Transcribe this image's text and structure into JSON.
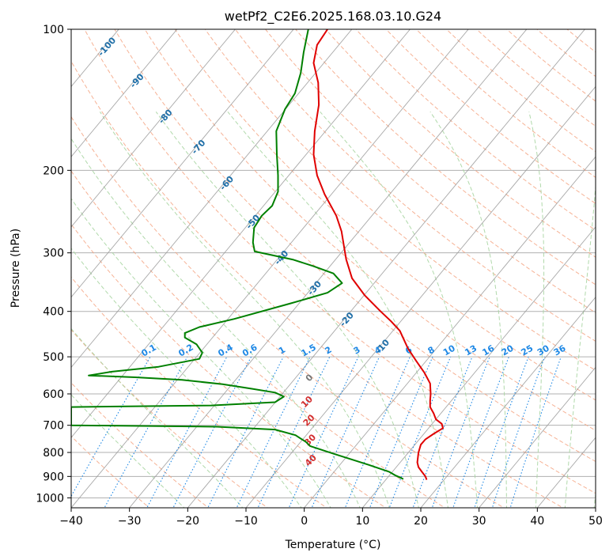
{
  "chart_data": {
    "type": "line",
    "title": "wetPf2_C2E6.2025.168.03.10.G24",
    "xlabel": "Temperature (°C)",
    "ylabel": "Pressure (hPa)",
    "xlim": [
      -40,
      50
    ],
    "ylim": [
      1050,
      100
    ],
    "y_scale": "log",
    "x_ticks": [
      -40,
      -30,
      -20,
      -10,
      0,
      10,
      20,
      30,
      40,
      50
    ],
    "y_ticks": [
      100,
      200,
      300,
      400,
      500,
      600,
      700,
      800,
      900,
      1000
    ],
    "grid": true,
    "series": [
      {
        "color": "#e00000",
        "points": [
          [
            21,
            915
          ],
          [
            20.8,
            900
          ],
          [
            20.2,
            880
          ],
          [
            19.6,
            860
          ],
          [
            19.4,
            840
          ],
          [
            19.6,
            800
          ],
          [
            20.0,
            770
          ],
          [
            20.8,
            750
          ],
          [
            22.2,
            730
          ],
          [
            23.8,
            710
          ],
          [
            23.6,
            695
          ],
          [
            22.6,
            680
          ],
          [
            22.2,
            660
          ],
          [
            21.6,
            640
          ],
          [
            21.6,
            620
          ],
          [
            21.7,
            600
          ],
          [
            21.6,
            570
          ],
          [
            20.6,
            540
          ],
          [
            19.2,
            510
          ],
          [
            17.8,
            480
          ],
          [
            16.4,
            440
          ],
          [
            14.9,
            420
          ],
          [
            13.1,
            400
          ],
          [
            10.4,
            370
          ],
          [
            8.2,
            340
          ],
          [
            7.2,
            310
          ],
          [
            6.8,
            290
          ],
          [
            6.4,
            270
          ],
          [
            5.5,
            250
          ],
          [
            3.5,
            225
          ],
          [
            2.2,
            205
          ],
          [
            1.6,
            185
          ],
          [
            1.8,
            165
          ],
          [
            2.5,
            145
          ],
          [
            2.4,
            130
          ],
          [
            1.6,
            118
          ],
          [
            2.2,
            108
          ],
          [
            4.0,
            100
          ]
        ]
      },
      {
        "color": "#008000",
        "points": [
          [
            17,
            912
          ],
          [
            16.5,
            905
          ],
          [
            15.6,
            895
          ],
          [
            14.6,
            880
          ],
          [
            11,
            850
          ],
          [
            5,
            805
          ],
          [
            1,
            775
          ],
          [
            0.3,
            760
          ],
          [
            -1.5,
            735
          ],
          [
            -5,
            715
          ],
          [
            -15,
            705
          ],
          [
            -40,
            700
          ],
          [
            -40,
            640
          ],
          [
            -16,
            635
          ],
          [
            -5,
            625
          ],
          [
            -3.5,
            608
          ],
          [
            -5,
            596
          ],
          [
            -9,
            585
          ],
          [
            -14,
            572
          ],
          [
            -21,
            560
          ],
          [
            -29,
            553
          ],
          [
            -37,
            548
          ],
          [
            -33,
            538
          ],
          [
            -25,
            525
          ],
          [
            -18,
            505
          ],
          [
            -17.5,
            490
          ],
          [
            -18.5,
            470
          ],
          [
            -20.5,
            455
          ],
          [
            -20.5,
            445
          ],
          [
            -18,
            432
          ],
          [
            -12,
            415
          ],
          [
            -2.5,
            385
          ],
          [
            4,
            365
          ],
          [
            6.5,
            348
          ],
          [
            5,
            332
          ],
          [
            1.5,
            320
          ],
          [
            -2,
            310
          ],
          [
            -8.5,
            298
          ],
          [
            -8.8,
            285
          ],
          [
            -8.6,
            265
          ],
          [
            -7.3,
            250
          ],
          [
            -5.5,
            238
          ],
          [
            -4.5,
            222
          ],
          [
            -4.5,
            205
          ],
          [
            -4.7,
            185
          ],
          [
            -4.8,
            165
          ],
          [
            -3.3,
            148
          ],
          [
            -1.6,
            137
          ],
          [
            -0.6,
            124
          ],
          [
            -0.1,
            112
          ],
          [
            0.7,
            100
          ]
        ]
      }
    ],
    "mixing_ratio_labels": [
      "0.1",
      "0.2",
      "0.4",
      "0.6",
      "1",
      "1.5",
      "2",
      "3",
      "4",
      "6",
      "8",
      "10",
      "13",
      "16",
      "20",
      "25",
      "30",
      "36"
    ],
    "dry_adiabat_labels": [
      "-100",
      "-90",
      "-80",
      "-70",
      "-60",
      "-50",
      "-40",
      "-30",
      "-20",
      "-10"
    ],
    "moist_adiabat_labels": [
      "0",
      "10",
      "20",
      "30",
      "40"
    ]
  },
  "colors": {
    "temperature": "#e00000",
    "dewpoint": "#008000",
    "dry_adiabat": "#f4a582",
    "moist_adiabat": "#a8d5a2",
    "mixing_ratio": "#1e88e5",
    "isotherm": "#999999"
  }
}
